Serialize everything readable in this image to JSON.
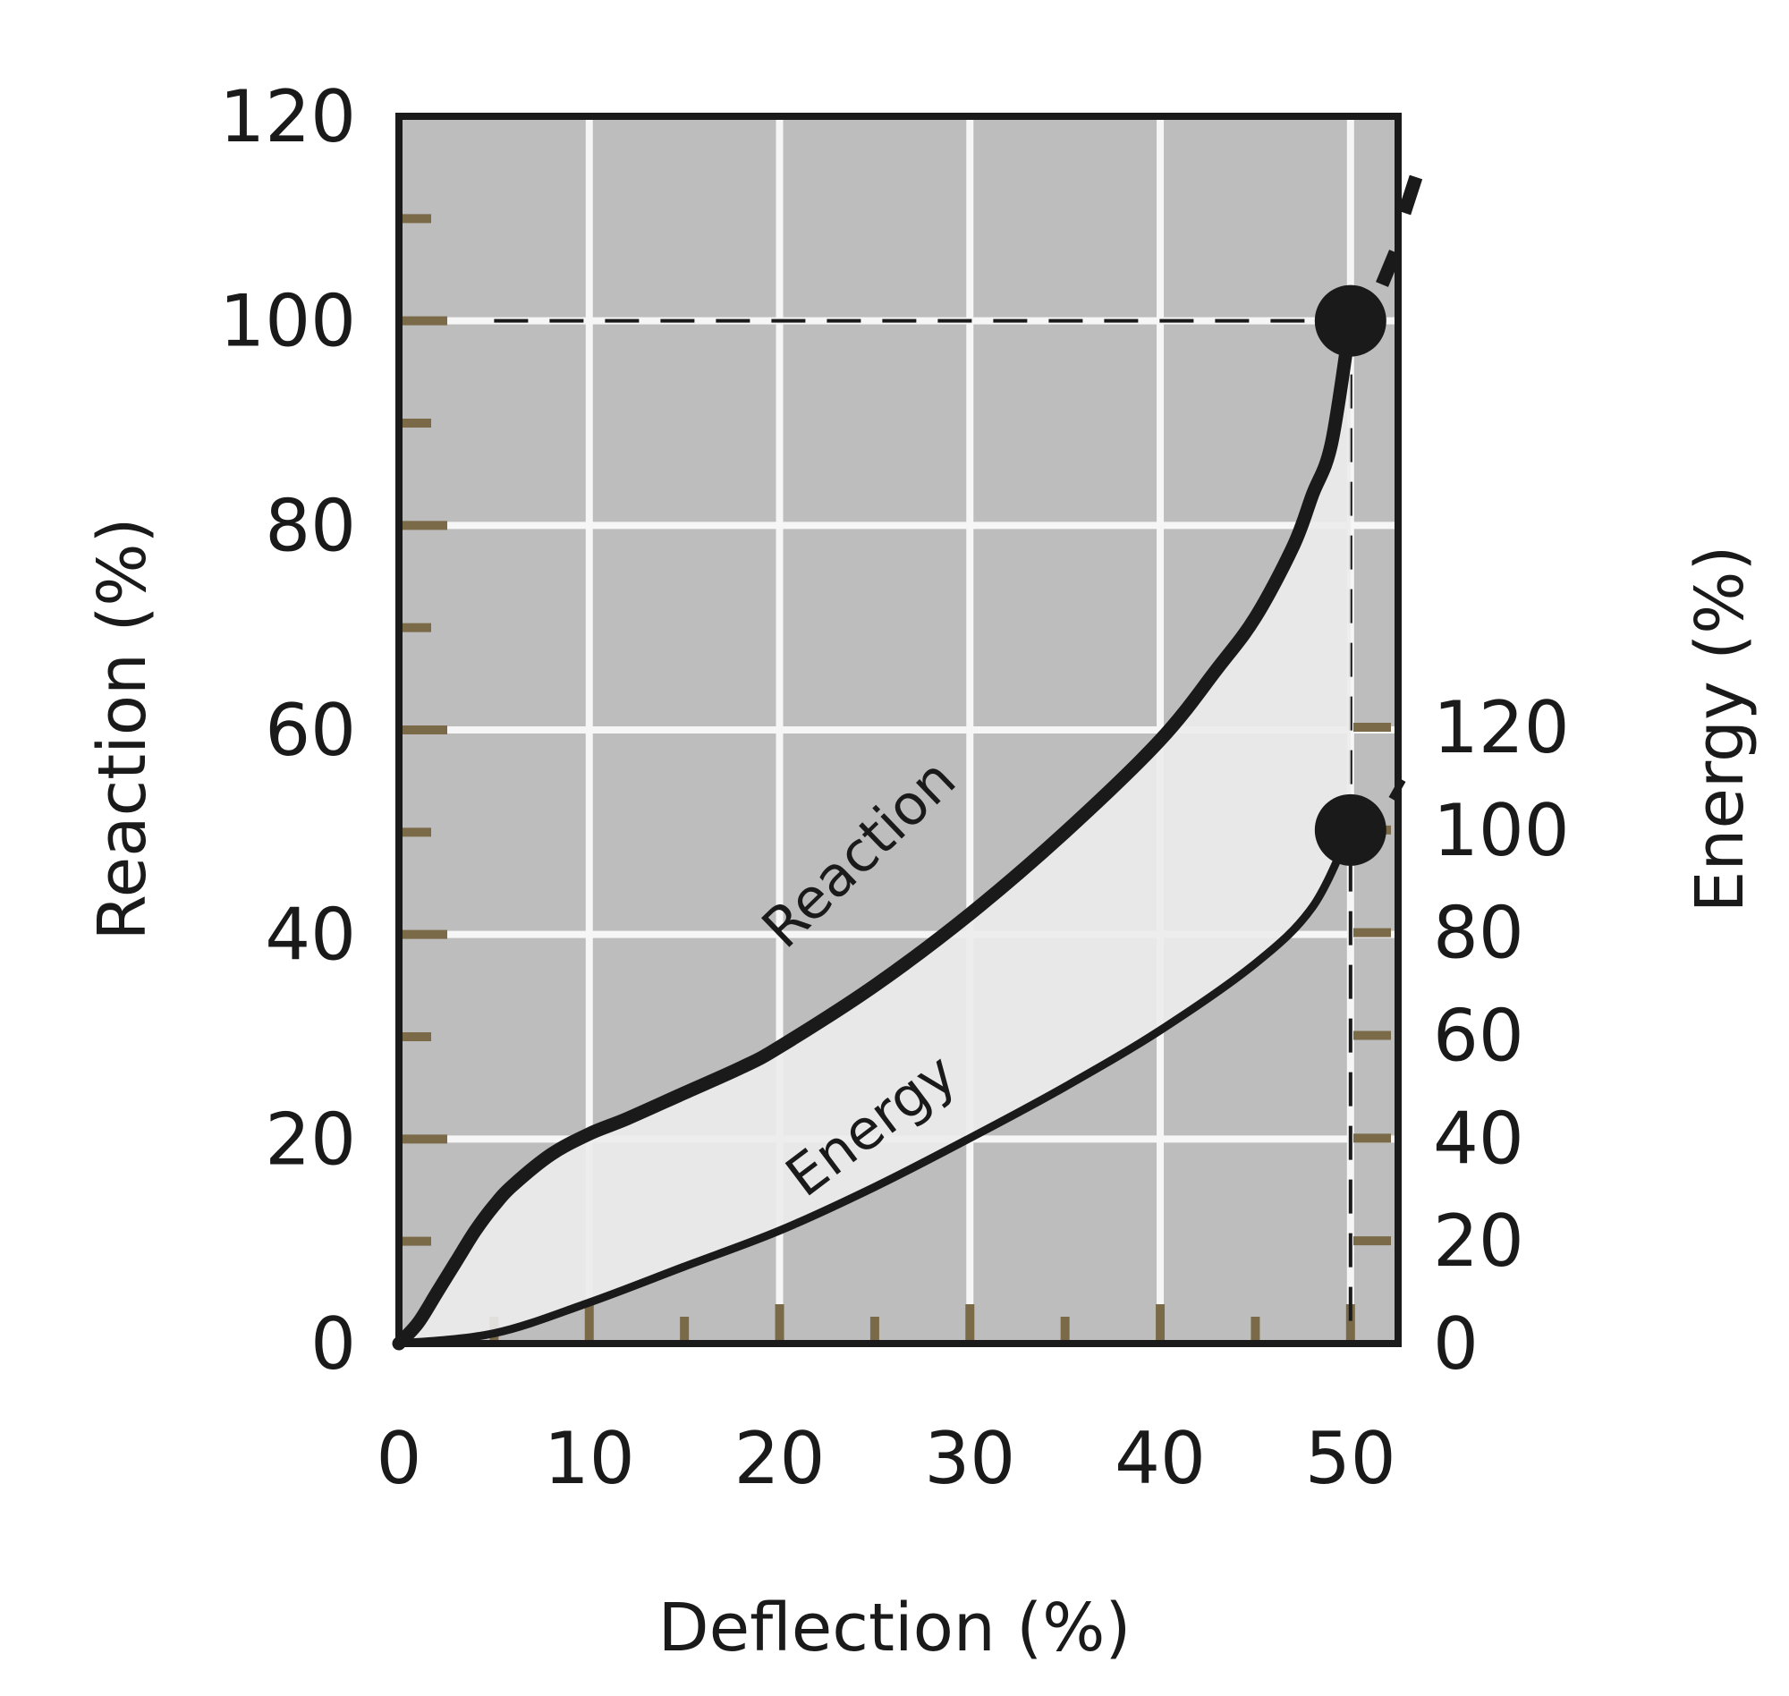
{
  "chart_data": {
    "type": "line",
    "title": "",
    "xlabel": "Deflection (%)",
    "ylabel": "Reaction (%)",
    "y2label": "Energy (%)",
    "xlim": [
      0,
      52.5
    ],
    "ylim": [
      0,
      120
    ],
    "y2lim": [
      0,
      120
    ],
    "x_ticks": [
      "0",
      "10",
      "20",
      "30",
      "40",
      "50"
    ],
    "y_ticks": [
      "0",
      "20",
      "40",
      "60",
      "80",
      "100",
      "120"
    ],
    "y2_ticks": [
      "0",
      "20",
      "40",
      "60",
      "80",
      "100",
      "120"
    ],
    "grid": true,
    "series": [
      {
        "name": "Reaction",
        "axis": "left",
        "x": [
          0,
          1,
          2,
          3,
          4,
          5,
          6,
          8,
          10,
          12,
          15,
          18,
          20,
          25,
          30,
          35,
          40,
          43,
          45,
          47,
          48,
          49,
          50
        ],
        "y": [
          0,
          2,
          5,
          8,
          11,
          13.5,
          15.5,
          18.5,
          20.5,
          22,
          24.5,
          27,
          29,
          35,
          42,
          50,
          59,
          66,
          71,
          78,
          83,
          88,
          100
        ]
      },
      {
        "name": "Energy",
        "axis": "right",
        "x": [
          0,
          5,
          10,
          15,
          20,
          25,
          30,
          35,
          40,
          45,
          48,
          50
        ],
        "y": [
          0,
          2,
          8,
          15,
          22,
          30.5,
          40,
          50,
          61,
          74,
          85,
          100
        ]
      }
    ],
    "markers": [
      {
        "series": "Reaction",
        "x": 50,
        "y": 100
      },
      {
        "series": "Energy",
        "x": 50,
        "y": 100
      }
    ],
    "reference_lines": [
      {
        "type": "horizontal",
        "y": 100,
        "from_x": 5,
        "to_x": 50
      },
      {
        "type": "vertical",
        "x": 50,
        "from_y": 0,
        "to_y": 100
      }
    ],
    "annotations": [
      "Reaction",
      "Energy"
    ]
  }
}
